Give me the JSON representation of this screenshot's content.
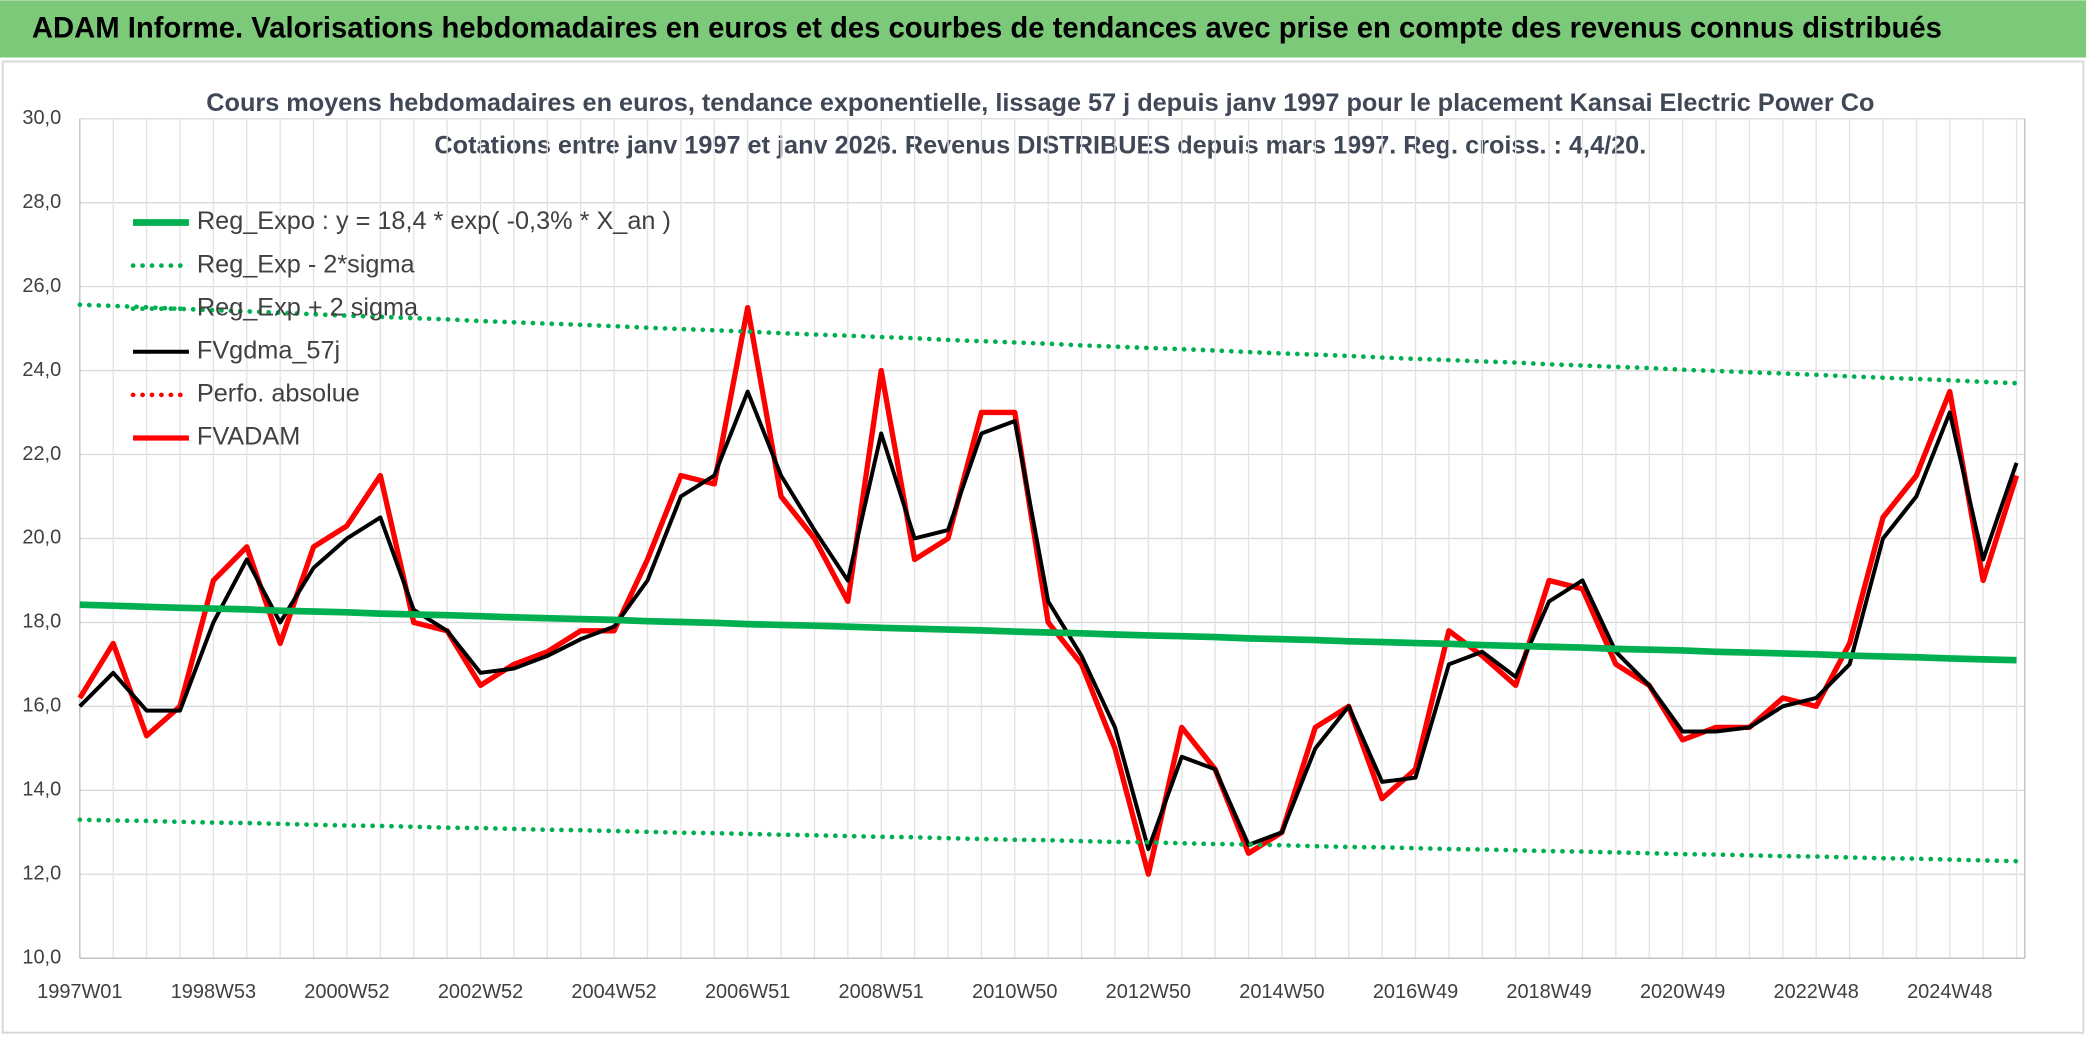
{
  "header": {
    "title": "ADAM Informe. Valorisations hebdomadaires en euros et des courbes de tendances avec prise en compte des revenus connus distribués"
  },
  "chart_data": {
    "type": "line",
    "title": "Cours moyens hebdomadaires en euros, tendance exponentielle, lissage 57 j depuis janv 1997 pour le placement Kansai Electric Power Co",
    "subtitle": "Cotations entre janv 1997 et janv 2026. Revenus DISTRIBUES depuis mars 1997. Reg. croiss. : 4,4/20.",
    "categories": [
      "1997W01",
      null,
      null,
      null,
      "1998W53",
      null,
      null,
      null,
      "2000W52",
      null,
      null,
      null,
      "2002W52",
      null,
      null,
      null,
      "2004W52",
      null,
      null,
      null,
      "2006W51",
      null,
      null,
      null,
      "2008W51",
      null,
      null,
      null,
      "2010W50",
      null,
      null,
      null,
      "2012W50",
      null,
      null,
      null,
      "2014W50",
      null,
      null,
      null,
      "2016W49",
      null,
      null,
      null,
      "2018W49",
      null,
      null,
      null,
      "2020W49",
      null,
      null,
      null,
      "2022W48",
      null,
      null,
      null,
      "2024W48",
      null,
      null
    ],
    "ylim": [
      10,
      30
    ],
    "yticks": [
      {
        "value": 10,
        "label": "10,0"
      },
      {
        "value": 12,
        "label": "12,0"
      },
      {
        "value": 14,
        "label": "14,0"
      },
      {
        "value": 16,
        "label": "16,0"
      },
      {
        "value": 18,
        "label": "18,0"
      },
      {
        "value": 20,
        "label": "20,0"
      },
      {
        "value": 22,
        "label": "22,0"
      },
      {
        "value": 24,
        "label": "24,0"
      },
      {
        "value": 26,
        "label": "26,0"
      },
      {
        "value": 28,
        "label": "28,0"
      },
      {
        "value": 30,
        "label": "30,0"
      }
    ],
    "grid": true,
    "legend": "upper left",
    "series": [
      {
        "name": "Reg_Expo : y = 18,4 * exp( -0,3% *  X_an )",
        "color": "#00b050",
        "dotted": false,
        "values": [
          18.42,
          18.4,
          18.37,
          18.35,
          18.33,
          18.31,
          18.28,
          18.26,
          18.24,
          18.21,
          18.19,
          18.17,
          18.15,
          18.12,
          18.1,
          18.08,
          18.06,
          18.03,
          18.01,
          17.99,
          17.96,
          17.94,
          17.92,
          17.9,
          17.87,
          17.85,
          17.83,
          17.81,
          17.78,
          17.76,
          17.74,
          17.71,
          17.69,
          17.67,
          17.65,
          17.62,
          17.6,
          17.58,
          17.55,
          17.53,
          17.51,
          17.49,
          17.46,
          17.44,
          17.42,
          17.4,
          17.37,
          17.35,
          17.33,
          17.3,
          17.28,
          17.26,
          17.24,
          17.21,
          17.19,
          17.17,
          17.14,
          17.12,
          17.1
        ]
      },
      {
        "name": "Reg_Exp - 2*sigma",
        "color": "#00b050",
        "dotted": true,
        "values": [
          13.3,
          13.28,
          13.27,
          13.25,
          13.23,
          13.22,
          13.2,
          13.18,
          13.16,
          13.15,
          13.13,
          13.11,
          13.1,
          13.08,
          13.06,
          13.05,
          13.03,
          13.01,
          12.99,
          12.98,
          12.96,
          12.94,
          12.93,
          12.91,
          12.89,
          12.88,
          12.86,
          12.84,
          12.82,
          12.81,
          12.79,
          12.77,
          12.76,
          12.74,
          12.72,
          12.71,
          12.69,
          12.67,
          12.65,
          12.64,
          12.62,
          12.6,
          12.59,
          12.57,
          12.55,
          12.54,
          12.52,
          12.5,
          12.48,
          12.47,
          12.45,
          12.43,
          12.42,
          12.4,
          12.38,
          12.37,
          12.35,
          12.33,
          12.31
        ]
      },
      {
        "name": "Reg_Exp + 2 sigma",
        "color": "#00b050",
        "dotted": true,
        "values": [
          25.57,
          25.54,
          25.51,
          25.47,
          25.44,
          25.41,
          25.38,
          25.34,
          25.31,
          25.28,
          25.25,
          25.22,
          25.18,
          25.15,
          25.12,
          25.09,
          25.06,
          25.02,
          24.99,
          24.96,
          24.93,
          24.89,
          24.86,
          24.83,
          24.8,
          24.77,
          24.73,
          24.7,
          24.67,
          24.64,
          24.6,
          24.57,
          24.54,
          24.51,
          24.48,
          24.44,
          24.41,
          24.38,
          24.35,
          24.31,
          24.28,
          24.25,
          24.22,
          24.19,
          24.15,
          24.12,
          24.09,
          24.06,
          24.02,
          23.99,
          23.96,
          23.93,
          23.9,
          23.86,
          23.83,
          23.8,
          23.77,
          23.73,
          23.7
        ]
      },
      {
        "name": "FVgdma_57j",
        "color": "#000000",
        "dotted": false,
        "values": [
          16.0,
          16.8,
          15.9,
          15.9,
          18.0,
          19.5,
          18.0,
          19.3,
          20.0,
          20.5,
          18.3,
          17.8,
          16.8,
          16.9,
          17.2,
          17.6,
          17.9,
          19.0,
          21.0,
          21.5,
          23.5,
          21.5,
          20.2,
          19.0,
          22.5,
          20.0,
          20.2,
          22.5,
          22.8,
          18.5,
          17.2,
          15.5,
          12.6,
          14.8,
          14.5,
          12.7,
          13.0,
          15.0,
          16.0,
          14.2,
          14.3,
          17.0,
          17.3,
          16.7,
          18.5,
          19.0,
          17.3,
          16.5,
          15.4,
          15.4,
          15.5,
          16.0,
          16.2,
          17.0,
          20.0,
          21.0,
          23.0,
          19.5,
          21.8
        ]
      },
      {
        "name": "Perfo. absolue",
        "color": "#ff0000",
        "dotted": true,
        "values": [
          null,
          null,
          null,
          null,
          null,
          null,
          null,
          null,
          null,
          null,
          null,
          null,
          null,
          null,
          null,
          null,
          null,
          null,
          null,
          null,
          null,
          null,
          null,
          null,
          null,
          null,
          null,
          null,
          null,
          null,
          null,
          null,
          null,
          null,
          null,
          null,
          null,
          null,
          null,
          null,
          null,
          null,
          null,
          null,
          null,
          null,
          null,
          null,
          null,
          null,
          null,
          null,
          null,
          null,
          null,
          null,
          null,
          null,
          null
        ]
      },
      {
        "name": "FVADAM",
        "color": "#ff0000",
        "dotted": false,
        "values": [
          16.2,
          17.5,
          15.3,
          16.0,
          19.0,
          19.8,
          17.5,
          19.8,
          20.3,
          21.5,
          18.0,
          17.8,
          16.5,
          17.0,
          17.3,
          17.8,
          17.8,
          19.5,
          21.5,
          21.3,
          25.5,
          21.0,
          20.0,
          18.5,
          24.0,
          19.5,
          20.0,
          23.0,
          23.0,
          18.0,
          17.0,
          15.0,
          12.0,
          15.5,
          14.5,
          12.5,
          13.0,
          15.5,
          16.0,
          13.8,
          14.5,
          17.8,
          17.2,
          16.5,
          19.0,
          18.8,
          17.0,
          16.5,
          15.2,
          15.5,
          15.5,
          16.2,
          16.0,
          17.5,
          20.5,
          21.5,
          23.5,
          19.0,
          21.5
        ]
      }
    ]
  }
}
